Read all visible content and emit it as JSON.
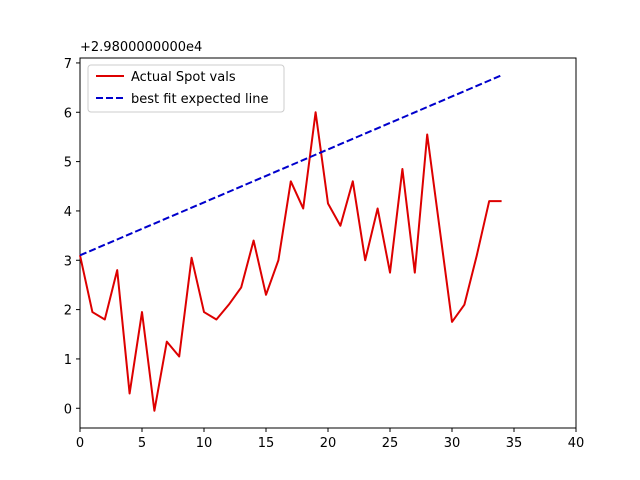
{
  "chart_data": {
    "type": "line",
    "title": "",
    "xlabel": "",
    "ylabel": "",
    "y_offset_label": "+2.9800000000e4",
    "xlim": [
      0,
      40
    ],
    "ylim": [
      -0.4,
      7.1
    ],
    "x_ticks": [
      0,
      5,
      10,
      15,
      20,
      25,
      30,
      35,
      40
    ],
    "y_ticks": [
      0,
      1,
      2,
      3,
      4,
      5,
      6,
      7
    ],
    "grid": false,
    "legend_position": "top-left",
    "series": [
      {
        "name": "Actual Spot vals",
        "color": "#dd0000",
        "style": "solid",
        "x": [
          0,
          1,
          2,
          3,
          4,
          5,
          6,
          7,
          8,
          9,
          10,
          11,
          12,
          13,
          14,
          15,
          16,
          17,
          18,
          19,
          20,
          21,
          22,
          23,
          24,
          25,
          26,
          27,
          28,
          29,
          30,
          31,
          32,
          33,
          34
        ],
        "y": [
          3.1,
          1.95,
          1.8,
          2.8,
          0.3,
          1.95,
          -0.05,
          1.35,
          1.05,
          3.05,
          1.95,
          1.8,
          2.1,
          2.45,
          3.4,
          2.3,
          3.0,
          4.6,
          4.05,
          6.0,
          4.15,
          3.7,
          4.6,
          3.0,
          4.05,
          2.75,
          4.85,
          2.75,
          5.55,
          3.65,
          1.75,
          2.1,
          3.1,
          4.2,
          4.2
        ]
      },
      {
        "name": "best fit expected line",
        "color": "#0000cc",
        "style": "dashed",
        "x": [
          0,
          34
        ],
        "y": [
          3.1,
          6.75
        ]
      }
    ]
  }
}
